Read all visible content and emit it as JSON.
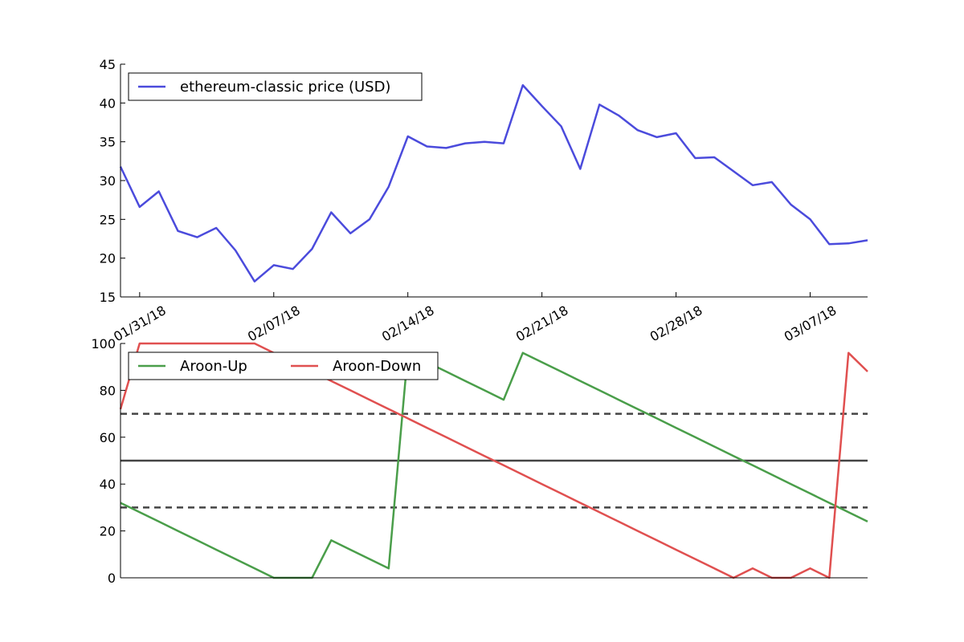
{
  "chart_data": [
    {
      "type": "line",
      "x_dates": [
        "01/30/18",
        "01/31/18",
        "02/01/18",
        "02/02/18",
        "02/03/18",
        "02/04/18",
        "02/05/18",
        "02/06/18",
        "02/07/18",
        "02/08/18",
        "02/09/18",
        "02/10/18",
        "02/11/18",
        "02/12/18",
        "02/13/18",
        "02/14/18",
        "02/15/18",
        "02/16/18",
        "02/17/18",
        "02/18/18",
        "02/19/18",
        "02/20/18",
        "02/21/18",
        "02/22/18",
        "02/23/18",
        "02/24/18",
        "02/25/18",
        "02/26/18",
        "02/27/18",
        "02/28/18",
        "03/01/18",
        "03/02/18",
        "03/03/18",
        "03/04/18",
        "03/05/18",
        "03/06/18",
        "03/07/18",
        "03/08/18",
        "03/09/18",
        "03/10/18"
      ],
      "series": [
        {
          "name": "ethereum-classic price (USD)",
          "color": "#4b4bdc",
          "values": [
            31.8,
            26.6,
            28.6,
            23.5,
            22.7,
            23.9,
            21.0,
            17.0,
            19.1,
            18.6,
            21.2,
            25.9,
            23.2,
            25.0,
            29.2,
            35.7,
            34.4,
            34.2,
            34.8,
            35.0,
            34.8,
            42.3,
            39.6,
            37.0,
            31.5,
            39.8,
            38.4,
            36.5,
            35.6,
            36.1,
            32.9,
            33.0,
            31.2,
            29.4,
            29.8,
            26.9,
            25.0,
            21.8,
            21.9,
            22.3
          ]
        }
      ],
      "xticks": [
        "01/31/18",
        "02/07/18",
        "02/14/18",
        "02/21/18",
        "02/28/18",
        "03/07/18"
      ],
      "yticks": [
        "15",
        "20",
        "25",
        "30",
        "35",
        "40",
        "45"
      ],
      "ylim": [
        15,
        45
      ],
      "legend": "top-left"
    },
    {
      "type": "line",
      "x_dates": [
        "01/30/18",
        "01/31/18",
        "02/01/18",
        "02/02/18",
        "02/03/18",
        "02/04/18",
        "02/05/18",
        "02/06/18",
        "02/07/18",
        "02/08/18",
        "02/09/18",
        "02/10/18",
        "02/11/18",
        "02/12/18",
        "02/13/18",
        "02/14/18",
        "02/15/18",
        "02/16/18",
        "02/17/18",
        "02/18/18",
        "02/19/18",
        "02/20/18",
        "02/21/18",
        "02/22/18",
        "02/23/18",
        "02/24/18",
        "02/25/18",
        "02/26/18",
        "02/27/18",
        "02/28/18",
        "03/01/18",
        "03/02/18",
        "03/03/18",
        "03/04/18",
        "03/05/18",
        "03/06/18",
        "03/07/18",
        "03/08/18",
        "03/09/18",
        "03/10/18"
      ],
      "series": [
        {
          "name": "Aroon-Up",
          "color": "#4a9e4a",
          "values": [
            32,
            28,
            24,
            20,
            16,
            12,
            8,
            4,
            0,
            0,
            0,
            16,
            12,
            8,
            4,
            96,
            92,
            88,
            84,
            80,
            76,
            96,
            92,
            88,
            84,
            80,
            76,
            72,
            68,
            64,
            60,
            56,
            52,
            48,
            44,
            40,
            36,
            32,
            28,
            24
          ]
        },
        {
          "name": "Aroon-Down",
          "color": "#e05050",
          "values": [
            72,
            100,
            100,
            100,
            100,
            100,
            100,
            100,
            96,
            92,
            88,
            84,
            80,
            76,
            72,
            68,
            64,
            60,
            56,
            52,
            48,
            44,
            40,
            36,
            32,
            28,
            24,
            20,
            16,
            12,
            8,
            4,
            0,
            4,
            0,
            0,
            4,
            0,
            96,
            88
          ]
        }
      ],
      "reference_lines": [
        {
          "value": 70,
          "style": "dashed"
        },
        {
          "value": 50,
          "style": "solid"
        },
        {
          "value": 30,
          "style": "dashed"
        }
      ],
      "yticks": [
        "0",
        "20",
        "40",
        "60",
        "80",
        "100"
      ],
      "ylim": [
        0,
        100
      ],
      "legend": "top-left"
    }
  ]
}
